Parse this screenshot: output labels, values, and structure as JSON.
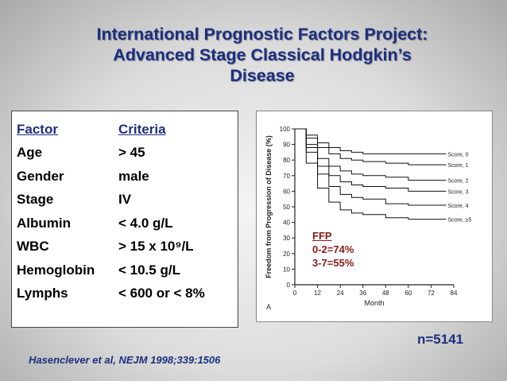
{
  "slide": {
    "title_lines": [
      "International Prognostic Factors Project:",
      "Advanced Stage Classical Hodgkin’s",
      "Disease"
    ],
    "factors_header": {
      "factor": "Factor",
      "criteria": "Criteria"
    },
    "factors": [
      {
        "factor": "Age",
        "criteria": "> 45"
      },
      {
        "factor": "Gender",
        "criteria": "male"
      },
      {
        "factor": "Stage",
        "criteria": "IV"
      },
      {
        "factor": "Albumin",
        "criteria": "< 4.0 g/L"
      },
      {
        "factor": "WBC",
        "criteria": "> 15 x 10⁹/L"
      },
      {
        "factor": "Hemoglobin",
        "criteria": "< 10.5 g/L"
      },
      {
        "factor": "Lymphs",
        "criteria": "< 600 or < 8%"
      }
    ],
    "ffp_note": {
      "title": "FFP",
      "lines": [
        "0-2=74%",
        "3-7=55%"
      ]
    },
    "n_label": "n=5141",
    "citation": "Hasenclever et al, NEJM 1998;339:1506",
    "colors": {
      "title": "#1c2f80",
      "ffp_note": "#8a1a1a"
    }
  },
  "chart_data": {
    "type": "line",
    "ylabel": "Freedom from Progression of Disease (%)",
    "xlabel": "Month",
    "panel_label": "A",
    "x_ticks": [
      0,
      12,
      24,
      36,
      48,
      60,
      72,
      84
    ],
    "y_ticks": [
      0,
      10,
      20,
      30,
      40,
      50,
      60,
      70,
      80,
      90,
      100
    ],
    "xlim": [
      0,
      84
    ],
    "ylim": [
      0,
      100
    ],
    "series": [
      {
        "name": "Score, 0",
        "x": [
          0,
          6,
          12,
          18,
          24,
          30,
          36,
          48,
          60,
          72,
          80
        ],
        "values": [
          100,
          96,
          91,
          88,
          86,
          85,
          84,
          84,
          84,
          84,
          84
        ]
      },
      {
        "name": "Score, 1",
        "x": [
          0,
          6,
          12,
          18,
          24,
          30,
          36,
          48,
          60,
          72,
          80
        ],
        "values": [
          100,
          94,
          88,
          84,
          81,
          80,
          79,
          78,
          77,
          77,
          77
        ]
      },
      {
        "name": "Score, 2",
        "x": [
          0,
          6,
          12,
          18,
          24,
          30,
          36,
          48,
          60,
          72,
          80
        ],
        "values": [
          100,
          90,
          81,
          76,
          73,
          71,
          70,
          69,
          67,
          67,
          67
        ]
      },
      {
        "name": "Score, 3",
        "x": [
          0,
          6,
          12,
          18,
          24,
          30,
          36,
          48,
          60,
          72,
          80
        ],
        "values": [
          100,
          88,
          76,
          70,
          66,
          64,
          63,
          62,
          60,
          60,
          60
        ]
      },
      {
        "name": "Score, 4",
        "x": [
          0,
          6,
          12,
          18,
          24,
          30,
          36,
          48,
          60,
          72,
          80
        ],
        "values": [
          100,
          85,
          71,
          63,
          58,
          56,
          55,
          52,
          51,
          51,
          51
        ]
      },
      {
        "name": "Score, ≥5",
        "x": [
          0,
          6,
          12,
          18,
          24,
          30,
          36,
          48,
          60,
          72,
          80
        ],
        "values": [
          100,
          78,
          62,
          53,
          48,
          46,
          45,
          43,
          42,
          42,
          42
        ]
      }
    ]
  }
}
